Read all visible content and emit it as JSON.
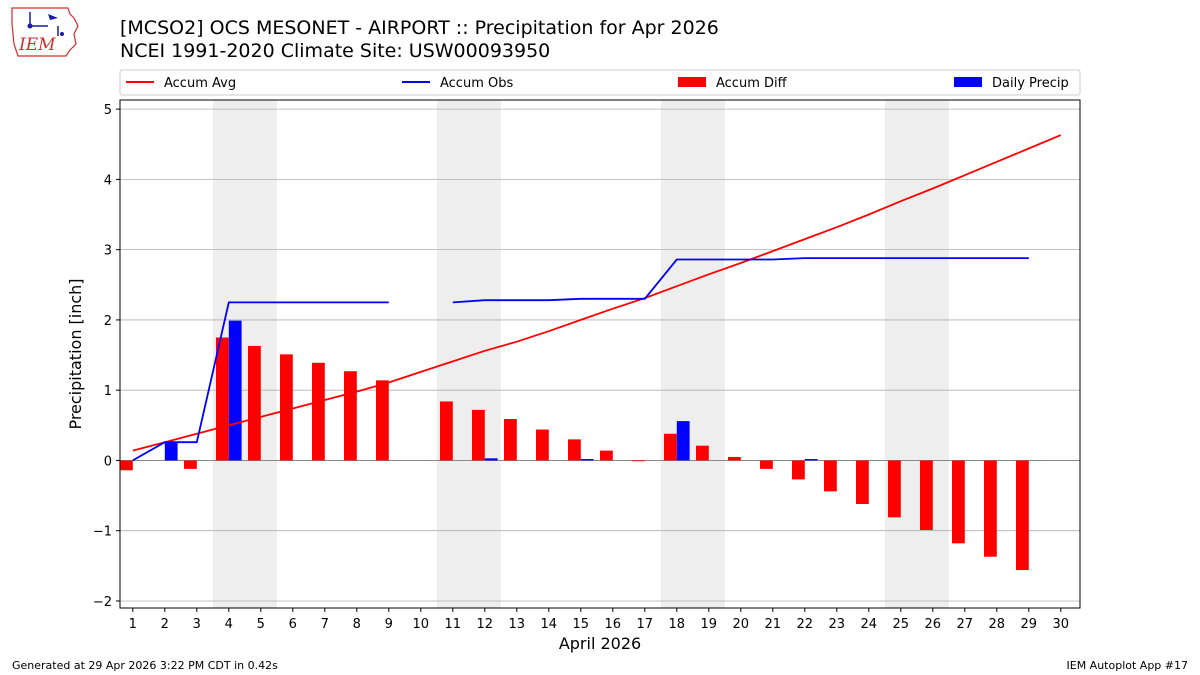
{
  "header": {
    "title_line1": "[MCSO2] OCS MESONET - AIRPORT :: Precipitation for Apr 2026",
    "title_line2": "NCEI 1991-2020 Climate Site: USW00093950"
  },
  "logo": {
    "text": "IEM",
    "color": "#d22c2c"
  },
  "footer": {
    "left": "Generated at 29 Apr 2026 3:22 PM CDT in 0.42s",
    "right": "IEM Autoplot App #17"
  },
  "colors": {
    "avg": "#ff0000",
    "obs": "#0000ff",
    "diff": "#ff0000",
    "daily": "#0000ff",
    "weekend": "#eeeeee",
    "grid": "#b0b0b0"
  },
  "chart_data": {
    "type": "bar",
    "title": "[MCSO2] OCS MESONET - AIRPORT :: Precipitation for Apr 2026",
    "xlabel": "April 2026",
    "ylabel": "Precipitation [inch]",
    "xlim": [
      0.6,
      30.6
    ],
    "ylim": [
      -2.1,
      5.13
    ],
    "yticks": [
      -2,
      -1,
      0,
      1,
      2,
      3,
      4,
      5
    ],
    "ytick_labels": [
      "−2",
      "−1",
      "0",
      "1",
      "2",
      "3",
      "4",
      "5"
    ],
    "xticks": [
      1,
      2,
      3,
      4,
      5,
      6,
      7,
      8,
      9,
      10,
      11,
      12,
      13,
      14,
      15,
      16,
      17,
      18,
      19,
      20,
      21,
      22,
      23,
      24,
      25,
      26,
      27,
      28,
      29,
      30
    ],
    "grid": "y",
    "legend_position": "top",
    "legend": [
      {
        "label": "Accum Avg",
        "kind": "line",
        "color": "#ff0000"
      },
      {
        "label": "Accum Obs",
        "kind": "line",
        "color": "#0000ff"
      },
      {
        "label": "Accum Diff",
        "kind": "bar",
        "color": "#ff0000"
      },
      {
        "label": "Daily Precip",
        "kind": "bar",
        "color": "#0000ff"
      }
    ],
    "weekend_spans": [
      [
        3.5,
        5.5
      ],
      [
        10.5,
        12.5
      ],
      [
        17.5,
        19.5
      ],
      [
        24.5,
        26.5
      ]
    ],
    "series": [
      {
        "name": "Accum Avg",
        "kind": "line",
        "color": "#ff0000",
        "x": [
          1,
          2,
          3,
          4,
          5,
          6,
          7,
          8,
          9,
          10,
          11,
          12,
          13,
          14,
          15,
          16,
          17,
          18,
          19,
          20,
          21,
          22,
          23,
          24,
          25,
          26,
          27,
          28,
          29,
          30
        ],
        "values": [
          0.14,
          0.26,
          0.38,
          0.5,
          0.62,
          0.74,
          0.86,
          0.98,
          1.11,
          1.26,
          1.41,
          1.56,
          1.69,
          1.84,
          2.0,
          2.16,
          2.31,
          2.48,
          2.65,
          2.81,
          2.98,
          3.15,
          3.32,
          3.5,
          3.69,
          3.87,
          4.06,
          4.25,
          4.44,
          4.63
        ]
      },
      {
        "name": "Accum Obs",
        "kind": "line",
        "color": "#0000ff",
        "x": [
          1,
          2,
          3,
          4,
          5,
          6,
          7,
          8,
          9,
          10,
          11,
          12,
          13,
          14,
          15,
          16,
          17,
          18,
          19,
          20,
          21,
          22,
          23,
          24,
          25,
          26,
          27,
          28,
          29
        ],
        "values": [
          0.0,
          0.26,
          0.26,
          2.25,
          2.25,
          2.25,
          2.25,
          2.25,
          2.25,
          null,
          2.25,
          2.28,
          2.28,
          2.28,
          2.3,
          2.3,
          2.3,
          2.86,
          2.86,
          2.86,
          2.86,
          2.88,
          2.88,
          2.88,
          2.88,
          2.88,
          2.88,
          2.88,
          2.88
        ]
      },
      {
        "name": "Accum Diff",
        "kind": "bar",
        "color": "#ff0000",
        "x": [
          1,
          3,
          4,
          5,
          6,
          7,
          8,
          9,
          11,
          12,
          13,
          14,
          15,
          16,
          17,
          18,
          19,
          20,
          21,
          22,
          23,
          24,
          25,
          26,
          27,
          28,
          29
        ],
        "values": [
          -0.14,
          -0.12,
          1.75,
          1.63,
          1.51,
          1.39,
          1.27,
          1.14,
          0.84,
          0.72,
          0.59,
          0.44,
          0.3,
          0.14,
          -0.01,
          0.38,
          0.21,
          0.05,
          -0.12,
          -0.27,
          -0.44,
          -0.62,
          -0.81,
          -0.99,
          -1.18,
          -1.37,
          -1.56
        ]
      },
      {
        "name": "Daily Precip",
        "kind": "bar",
        "color": "#0000ff",
        "x": [
          2,
          4,
          12,
          15,
          18,
          22
        ],
        "values": [
          0.26,
          1.99,
          0.03,
          0.02,
          0.56,
          0.02
        ]
      }
    ]
  }
}
